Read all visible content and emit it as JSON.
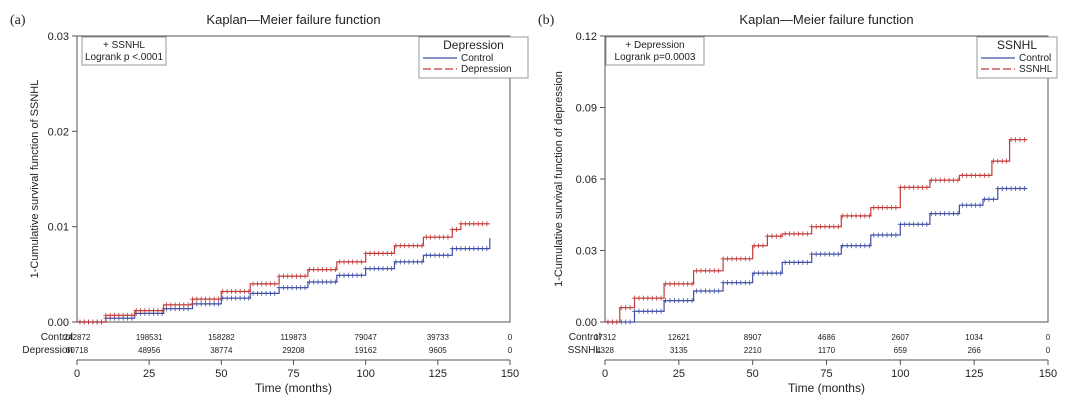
{
  "chart_data": [
    {
      "type": "line",
      "panel_label": "(a)",
      "title": "Kaplan—Meier failure function",
      "xlabel": "Time (months)",
      "ylabel": "1-Cumulative survival function of SSNHL",
      "xlim": [
        0,
        150
      ],
      "ylim": [
        0,
        0.03
      ],
      "xticks": [
        0,
        25,
        50,
        75,
        100,
        125,
        150
      ],
      "xtick_labels": [
        "0",
        "25",
        "50",
        "75",
        "100",
        "125",
        "150"
      ],
      "yticks": [
        0,
        0.01,
        0.02,
        0.03
      ],
      "ytick_labels": [
        "0.00",
        "0.01",
        "0.02",
        "0.03"
      ],
      "annotation": [
        "+ SSNHL",
        "Logrank p <.0001"
      ],
      "legend": {
        "title": "Depression",
        "position": "top-right"
      },
      "series": [
        {
          "name": "Control",
          "color": "#3f4fa6",
          "dash": "solid",
          "x": [
            0,
            10,
            20,
            30,
            40,
            50,
            60,
            70,
            80,
            90,
            100,
            110,
            120,
            130,
            143
          ],
          "y": [
            0,
            0.0004,
            0.0009,
            0.0014,
            0.0019,
            0.0025,
            0.003,
            0.0036,
            0.0042,
            0.0049,
            0.0056,
            0.0063,
            0.007,
            0.0077,
            0.0088
          ]
        },
        {
          "name": "Depression",
          "color": "#c23a3a",
          "dash": "dashed",
          "x": [
            0,
            10,
            20,
            30,
            40,
            50,
            60,
            70,
            80,
            90,
            100,
            110,
            120,
            130,
            133,
            143
          ],
          "y": [
            0,
            0.0007,
            0.0012,
            0.0018,
            0.0024,
            0.0032,
            0.004,
            0.0048,
            0.0055,
            0.0063,
            0.0072,
            0.008,
            0.0089,
            0.0097,
            0.0103,
            0.0103
          ]
        }
      ],
      "risk_table": {
        "times": [
          0,
          25,
          50,
          75,
          100,
          125,
          150
        ],
        "rows": [
          {
            "label": "Control",
            "values": [
              "242872",
              "198531",
              "158282",
              "119873",
              "79047",
              "39733",
              "0"
            ]
          },
          {
            "label": "Depression",
            "values": [
              "60718",
              "48956",
              "38774",
              "29208",
              "19162",
              "9605",
              "0"
            ]
          }
        ]
      }
    },
    {
      "type": "line",
      "panel_label": "(b)",
      "title": "Kaplan—Meier failure function",
      "xlabel": "Time (months)",
      "ylabel": "1-Cumulative survival function of depression",
      "xlim": [
        0,
        150
      ],
      "ylim": [
        0,
        0.12
      ],
      "xticks": [
        0,
        25,
        50,
        75,
        100,
        125,
        150
      ],
      "xtick_labels": [
        "0",
        "25",
        "50",
        "75",
        "100",
        "125",
        "150"
      ],
      "yticks": [
        0,
        0.03,
        0.06,
        0.09,
        0.12
      ],
      "ytick_labels": [
        "0.00",
        "0.03",
        "0.06",
        "0.09",
        "0.12"
      ],
      "annotation": [
        "+ Depression",
        "Logrank p=0.0003"
      ],
      "legend": {
        "title": "SSNHL",
        "position": "top-right"
      },
      "series": [
        {
          "name": "Control",
          "color": "#3f4fa6",
          "dash": "solid",
          "x": [
            0,
            10,
            20,
            30,
            40,
            50,
            60,
            70,
            80,
            90,
            100,
            110,
            120,
            128,
            133,
            143
          ],
          "y": [
            0,
            0.0045,
            0.009,
            0.013,
            0.0165,
            0.0205,
            0.025,
            0.0285,
            0.032,
            0.0365,
            0.041,
            0.0455,
            0.049,
            0.0515,
            0.056,
            0.056
          ]
        },
        {
          "name": "SSNHL",
          "color": "#c23a3a",
          "dash": "dashed",
          "x": [
            0,
            5,
            10,
            20,
            30,
            40,
            50,
            55,
            60,
            70,
            80,
            90,
            100,
            110,
            120,
            130,
            131,
            135,
            137,
            143
          ],
          "y": [
            0,
            0.006,
            0.01,
            0.016,
            0.0215,
            0.0265,
            0.032,
            0.036,
            0.037,
            0.04,
            0.0445,
            0.048,
            0.0565,
            0.0595,
            0.0615,
            0.0615,
            0.0675,
            0.0675,
            0.0765,
            0.0765
          ]
        }
      ],
      "risk_table": {
        "times": [
          0,
          25,
          50,
          75,
          100,
          125,
          150
        ],
        "rows": [
          {
            "label": "Control",
            "values": [
              "17312",
              "12621",
              "8907",
              "4686",
              "2607",
              "1034",
              "0"
            ]
          },
          {
            "label": "SSNHL",
            "values": [
              "4328",
              "3135",
              "2210",
              "1170",
              "659",
              "266",
              "0"
            ]
          }
        ]
      }
    }
  ]
}
